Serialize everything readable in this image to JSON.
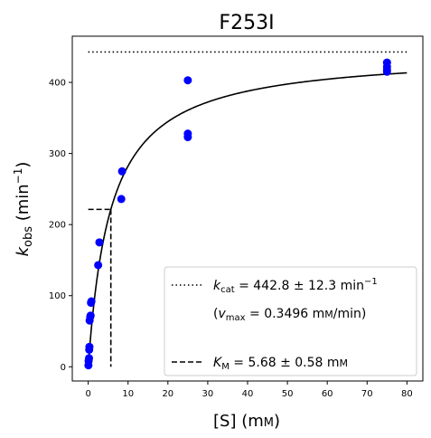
{
  "chart_data": {
    "type": "scatter",
    "title": "F253I",
    "xlabel": {
      "main": "[S] (m",
      "smallcaps": "M",
      "close": ")"
    },
    "ylabel": {
      "k": "k",
      "sub": "obs",
      "mid": " (min",
      "sup": "−1",
      "close": ")"
    },
    "xlim": [
      -4,
      84
    ],
    "ylim": [
      -20,
      465
    ],
    "xticks": [
      0,
      10,
      20,
      30,
      40,
      50,
      60,
      70,
      80
    ],
    "yticks": [
      0,
      100,
      200,
      300,
      400
    ],
    "grid": false,
    "point_color": "#0000ff",
    "series": [
      {
        "kind": "points",
        "x": [
          0.05,
          0.1,
          0.2,
          0.25,
          0.3,
          0.35,
          0.5,
          0.6,
          0.7,
          0.8,
          2.5,
          2.8,
          8.3,
          8.5,
          25,
          25,
          25,
          75,
          75,
          75,
          75
        ],
        "y": [
          2,
          8,
          12,
          24,
          28,
          65,
          70,
          72,
          90,
          92,
          143,
          175,
          236,
          275,
          403,
          328,
          323,
          428,
          422,
          418,
          415
        ]
      },
      {
        "kind": "fit",
        "model": "michaelis-menten",
        "kcat": 442.8,
        "km": 5.68,
        "x_range": [
          0,
          80
        ]
      }
    ],
    "kcat_line": {
      "y": 442.8,
      "x_range": [
        0,
        80
      ]
    },
    "km_marker": {
      "x": 5.68,
      "y": 221.4
    },
    "legend": {
      "placement": "lower-right",
      "entries": [
        {
          "style": "dotted",
          "prefix": "k",
          "sub": "cat",
          "text": " = 442.8 ± 12.3 min",
          "sup": "−1"
        },
        {
          "style": "none",
          "open": "(",
          "prefix": "v",
          "sub": "max",
          "text": " = 0.3496 m",
          "smallcaps": "M",
          "tail": "/min)"
        },
        {
          "style": "dashed",
          "prefix": "K",
          "sub": "M",
          "text": " = 5.68 ± 0.58 m",
          "smallcaps": "M"
        }
      ]
    }
  }
}
